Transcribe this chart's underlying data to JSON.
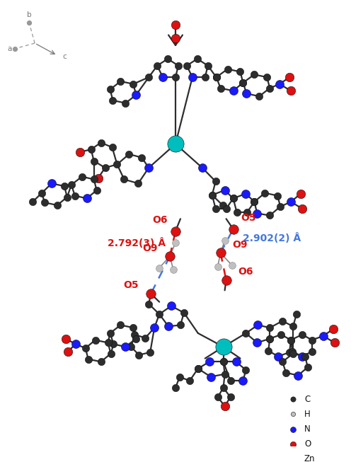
{
  "figsize": [
    4.96,
    6.53
  ],
  "dpi": 100,
  "background_color": "#ffffff",
  "legend": {
    "items": [
      {
        "label": "C",
        "color": "#2d2d2d",
        "size": 55
      },
      {
        "label": "H",
        "color": "#c0c0c0",
        "size": 40
      },
      {
        "label": "N",
        "color": "#1a1aff",
        "size": 65
      },
      {
        "label": "O",
        "color": "#dd1111",
        "size": 70
      },
      {
        "label": "Zn",
        "color": "#00bebe",
        "size": 200
      }
    ]
  }
}
